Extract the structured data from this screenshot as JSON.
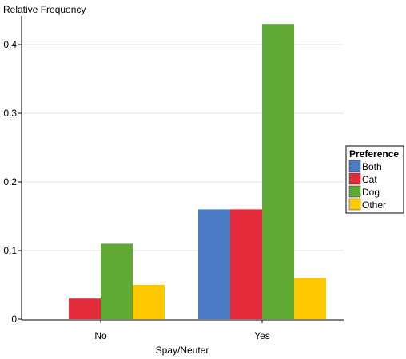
{
  "chart_data": {
    "type": "bar",
    "xlabel": "Spay/Neuter",
    "ylabel": "Relative Frequency",
    "categories": [
      "No",
      "Yes"
    ],
    "ylim": [
      0,
      0.43
    ],
    "yticks": [
      "0",
      "0.1",
      "0.2",
      "0.3",
      "0.4"
    ],
    "grid": true,
    "legend": {
      "title": "Preference",
      "position": "right"
    },
    "series": [
      {
        "name": "Both",
        "color": "#4a7bc4",
        "values": [
          0.0,
          0.16
        ]
      },
      {
        "name": "Cat",
        "color": "#e32a3a",
        "values": [
          0.03,
          0.16
        ]
      },
      {
        "name": "Dog",
        "color": "#5ea833",
        "values": [
          0.11,
          0.43
        ]
      },
      {
        "name": "Other",
        "color": "#fec800",
        "values": [
          0.05,
          0.06
        ]
      }
    ]
  }
}
